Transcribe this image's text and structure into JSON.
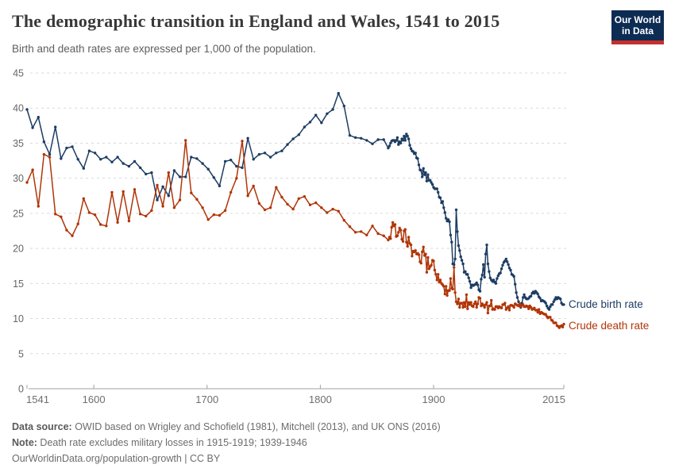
{
  "header": {
    "title": "The demographic transition in England and Wales, 1541 to 2015",
    "subtitle": "Birth and death rates are expressed per 1,000 of the population."
  },
  "logo": {
    "line1": "Our World",
    "line2": "in Data",
    "bg": "#0d2c54",
    "bar": "#c4302e"
  },
  "footer": {
    "source_label": "Data source:",
    "source_text": " OWID based on Wrigley and Schofield (1981), Mitchell (2013), and UK ONS (2016)",
    "note_label": "Note:",
    "note_text": " Death rate excludes military losses in 1915-1919; 1939-1946",
    "url": "OurWorldinData.org/population-growth",
    "separator": " | ",
    "license": "CC BY"
  },
  "chart_data": {
    "type": "line",
    "title": "The demographic transition in England and Wales, 1541 to 2015",
    "xlabel": "",
    "ylabel": "",
    "xlim": [
      1541,
      2015
    ],
    "ylim": [
      0,
      45
    ],
    "x_ticks": [
      1541,
      1600,
      1700,
      1800,
      1900,
      2015
    ],
    "y_ticks": [
      0,
      5,
      10,
      15,
      20,
      25,
      30,
      35,
      40,
      45
    ],
    "grid": "horizontal-dashed",
    "legend_position": "end-of-line-labels",
    "x": [
      1541,
      1546,
      1551,
      1556,
      1561,
      1566,
      1571,
      1576,
      1581,
      1586,
      1591,
      1596,
      1601,
      1606,
      1611,
      1616,
      1621,
      1626,
      1631,
      1636,
      1641,
      1646,
      1651,
      1656,
      1661,
      1666,
      1671,
      1676,
      1681,
      1686,
      1691,
      1696,
      1701,
      1706,
      1711,
      1716,
      1721,
      1726,
      1731,
      1736,
      1741,
      1746,
      1751,
      1756,
      1761,
      1766,
      1771,
      1776,
      1781,
      1786,
      1791,
      1796,
      1801,
      1806,
      1811,
      1816,
      1821,
      1826,
      1831,
      1836,
      1841,
      1846,
      1851,
      1856,
      1860,
      1861,
      1862,
      1863,
      1864,
      1865,
      1866,
      1867,
      1868,
      1869,
      1870,
      1871,
      1872,
      1873,
      1874,
      1875,
      1876,
      1877,
      1878,
      1879,
      1880,
      1881,
      1882,
      1883,
      1884,
      1885,
      1886,
      1887,
      1888,
      1889,
      1890,
      1891,
      1892,
      1893,
      1894,
      1895,
      1896,
      1897,
      1898,
      1899,
      1900,
      1901,
      1902,
      1903,
      1904,
      1905,
      1906,
      1907,
      1908,
      1909,
      1910,
      1911,
      1912,
      1913,
      1914,
      1915,
      1916,
      1917,
      1918,
      1919,
      1920,
      1921,
      1922,
      1923,
      1924,
      1925,
      1926,
      1927,
      1928,
      1929,
      1930,
      1931,
      1932,
      1933,
      1934,
      1935,
      1936,
      1937,
      1938,
      1939,
      1940,
      1941,
      1942,
      1943,
      1944,
      1945,
      1946,
      1947,
      1948,
      1949,
      1950,
      1951,
      1952,
      1953,
      1954,
      1955,
      1956,
      1957,
      1958,
      1959,
      1960,
      1961,
      1962,
      1963,
      1964,
      1965,
      1966,
      1967,
      1968,
      1969,
      1970,
      1971,
      1972,
      1973,
      1974,
      1975,
      1976,
      1977,
      1978,
      1979,
      1980,
      1981,
      1982,
      1983,
      1984,
      1985,
      1986,
      1987,
      1988,
      1989,
      1990,
      1991,
      1992,
      1993,
      1994,
      1995,
      1996,
      1997,
      1998,
      1999,
      2000,
      2001,
      2002,
      2003,
      2004,
      2005,
      2006,
      2007,
      2008,
      2009,
      2010,
      2011,
      2012,
      2013,
      2014,
      2015
    ],
    "series": [
      {
        "name": "Crude birth rate",
        "color": "#1d3d63",
        "values": [
          39.8,
          37.2,
          38.7,
          35.2,
          33.4,
          37.3,
          32.8,
          34.3,
          34.5,
          32.7,
          31.4,
          33.9,
          33.6,
          32.7,
          33.0,
          32.3,
          33.0,
          32.1,
          31.7,
          32.4,
          31.5,
          30.6,
          30.8,
          26.9,
          28.8,
          27.5,
          31.1,
          30.2,
          30.2,
          33.0,
          32.8,
          32.1,
          31.3,
          30.1,
          28.9,
          32.4,
          32.6,
          31.7,
          31.5,
          35.7,
          32.7,
          33.4,
          33.6,
          33.0,
          33.6,
          33.9,
          34.8,
          35.6,
          36.2,
          37.3,
          38.0,
          39.0,
          37.9,
          39.2,
          39.8,
          42.1,
          40.3,
          36.1,
          35.8,
          35.7,
          35.4,
          34.9,
          35.5,
          35.5,
          34.3,
          34.6,
          35.0,
          35.3,
          35.4,
          35.4,
          35.2,
          35.4,
          35.8,
          34.8,
          35.2,
          35.0,
          35.6,
          35.4,
          36.0,
          35.4,
          36.3,
          36.0,
          35.6,
          34.7,
          34.2,
          33.9,
          33.8,
          33.5,
          33.6,
          32.9,
          32.8,
          31.9,
          31.2,
          31.1,
          30.2,
          31.4,
          30.5,
          30.8,
          29.6,
          30.5,
          29.7,
          29.7,
          29.4,
          29.1,
          28.7,
          28.5,
          28.5,
          28.5,
          28.0,
          27.3,
          27.2,
          26.5,
          26.7,
          25.8,
          25.1,
          24.3,
          23.9,
          24.1,
          23.8,
          21.9,
          20.9,
          17.8,
          17.7,
          18.5,
          25.5,
          22.4,
          20.4,
          19.7,
          18.8,
          18.3,
          17.8,
          16.6,
          16.7,
          16.3,
          16.3,
          15.8,
          15.3,
          14.4,
          14.8,
          14.7,
          14.8,
          14.9,
          15.1,
          14.8,
          14.1,
          13.9,
          15.6,
          16.2,
          17.7,
          15.9,
          19.2,
          20.5,
          17.8,
          16.7,
          15.8,
          15.5,
          15.3,
          15.5,
          15.2,
          15.0,
          15.7,
          16.1,
          16.4,
          16.5,
          17.1,
          17.6,
          18.0,
          18.2,
          18.5,
          18.1,
          17.7,
          17.2,
          16.9,
          16.3,
          16.2,
          16.0,
          14.9,
          13.7,
          13.0,
          12.4,
          11.9,
          11.6,
          12.2,
          13.0,
          13.4,
          13.0,
          12.8,
          12.8,
          12.9,
          13.1,
          13.2,
          13.6,
          13.8,
          13.6,
          13.9,
          13.7,
          13.5,
          13.1,
          12.9,
          12.5,
          12.6,
          12.5,
          12.4,
          12.2,
          11.8,
          11.5,
          11.3,
          11.7,
          12.0,
          12.0,
          12.4,
          12.7,
          13.0,
          12.8,
          13.0,
          12.9,
          12.8,
          12.2,
          12.0,
          12.0
        ]
      },
      {
        "name": "Crude death rate",
        "color": "#b13507",
        "values": [
          29.4,
          31.2,
          26.0,
          33.4,
          33.0,
          24.9,
          24.5,
          22.6,
          21.8,
          23.5,
          27.1,
          25.1,
          24.8,
          23.4,
          23.2,
          28.0,
          23.7,
          28.1,
          23.9,
          28.4,
          24.9,
          24.6,
          25.4,
          29.0,
          26.0,
          30.8,
          25.8,
          26.9,
          35.4,
          27.9,
          27.0,
          25.8,
          24.1,
          24.8,
          24.7,
          25.4,
          28.0,
          30.0,
          35.3,
          27.5,
          28.9,
          26.4,
          25.5,
          25.8,
          28.7,
          27.3,
          26.3,
          25.6,
          27.1,
          27.4,
          26.2,
          26.5,
          25.8,
          25.1,
          25.6,
          25.3,
          24.0,
          23.1,
          22.3,
          22.4,
          21.9,
          23.2,
          22.1,
          21.8,
          21.2,
          21.6,
          21.4,
          23.0,
          23.7,
          23.2,
          23.4,
          21.7,
          21.8,
          22.3,
          22.9,
          22.6,
          21.3,
          21.0,
          22.5,
          22.7,
          20.9,
          20.3,
          21.6,
          20.7,
          20.5,
          18.9,
          19.6,
          19.5,
          19.7,
          19.2,
          19.3,
          19.1,
          18.1,
          17.9,
          19.5,
          20.2,
          19.0,
          19.2,
          16.6,
          18.7,
          17.1,
          17.4,
          17.6,
          18.3,
          18.2,
          16.9,
          16.3,
          15.5,
          16.3,
          15.2,
          15.5,
          15.0,
          14.8,
          14.6,
          13.5,
          14.6,
          13.3,
          14.0,
          14.0,
          15.7,
          14.3,
          14.2,
          17.3,
          13.7,
          12.4,
          12.1,
          12.8,
          11.6,
          12.2,
          12.2,
          11.6,
          12.3,
          11.7,
          13.4,
          11.4,
          12.3,
          12.0,
          12.3,
          11.8,
          11.7,
          12.1,
          12.4,
          11.6,
          12.1,
          13.0,
          12.9,
          11.8,
          12.1,
          11.9,
          11.6,
          12.0,
          12.3,
          10.8,
          11.8,
          11.8,
          12.6,
          11.3,
          11.4,
          11.3,
          11.7,
          11.7,
          11.5,
          11.7,
          11.6,
          11.5,
          12.0,
          12.0,
          12.2,
          11.3,
          11.5,
          11.7,
          11.2,
          11.9,
          11.9,
          11.8,
          11.6,
          12.1,
          12.0,
          11.9,
          11.8,
          12.1,
          11.7,
          11.9,
          12.0,
          11.7,
          11.7,
          11.8,
          11.7,
          11.4,
          11.8,
          11.6,
          11.3,
          11.4,
          11.5,
          11.2,
          11.2,
          10.9,
          11.3,
          10.7,
          10.9,
          10.8,
          10.7,
          10.6,
          10.6,
          10.3,
          10.1,
          10.2,
          10.2,
          9.8,
          9.7,
          9.4,
          9.4,
          9.4,
          9.0,
          8.9,
          8.7,
          8.9,
          9.0,
          8.8,
          9.2
        ]
      }
    ]
  }
}
